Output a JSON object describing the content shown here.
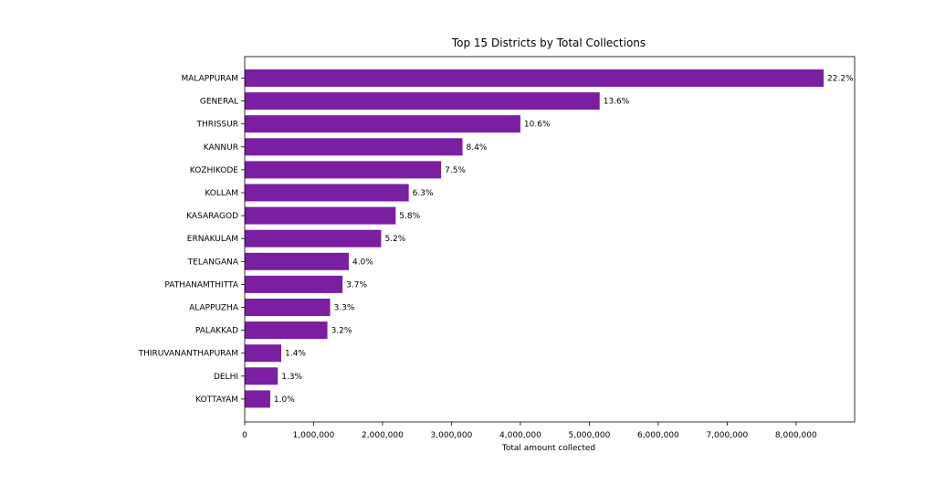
{
  "chart_data": {
    "type": "bar",
    "orientation": "horizontal",
    "title": "Top 15 Districts by Total Collections",
    "xlabel": "Total amount collected",
    "ylabel": "",
    "xlim": [
      0,
      8850000
    ],
    "xticks": [
      0,
      1000000,
      2000000,
      3000000,
      4000000,
      5000000,
      6000000,
      7000000,
      8000000
    ],
    "xtick_labels": [
      "0",
      "1,000,000",
      "2,000,000",
      "3,000,000",
      "4,000,000",
      "5,000,000",
      "6,000,000",
      "7,000,000",
      "8,000,000"
    ],
    "grid": false,
    "bar_color": "#7b1fa2",
    "categories": [
      "MALAPPURAM",
      "GENERAL",
      "THRISSUR",
      "KANNUR",
      "KOZHIKODE",
      "KOLLAM",
      "KASARAGOD",
      "ERNAKULAM",
      "TELANGANA",
      "PATHANAMTHITTA",
      "ALAPPUZHA",
      "PALAKKAD",
      "THIRUVANANTHAPURAM",
      "DELHI",
      "KOTTAYAM"
    ],
    "values": [
      8400000,
      5150000,
      4000000,
      3160000,
      2850000,
      2380000,
      2190000,
      1980000,
      1510000,
      1420000,
      1240000,
      1200000,
      530000,
      480000,
      370000
    ],
    "data_labels": [
      "22.2%",
      "13.6%",
      "10.6%",
      "8.4%",
      "7.5%",
      "6.3%",
      "5.8%",
      "5.2%",
      "4.0%",
      "3.7%",
      "3.3%",
      "3.2%",
      "1.4%",
      "1.3%",
      "1.0%"
    ]
  }
}
